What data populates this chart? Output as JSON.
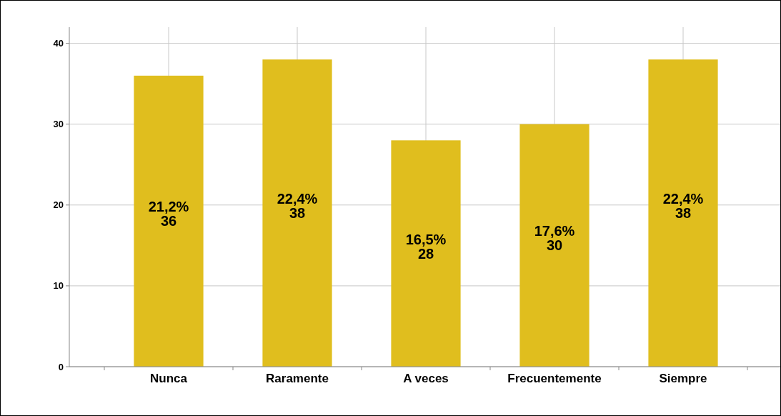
{
  "chart_data": {
    "type": "bar",
    "categories": [
      "Nunca",
      "Raramente",
      "A veces",
      "Frecuentemente",
      "Siempre"
    ],
    "values": [
      36,
      38,
      28,
      30,
      38
    ],
    "value_labels": [
      "21,2%\n36",
      "22,4%\n38",
      "16,5%\n28",
      "17,6%\n30",
      "22,4%\n38"
    ],
    "color": "#e0be1e",
    "ylim": [
      0,
      42
    ],
    "yticks": [
      0,
      10,
      20,
      30,
      40
    ],
    "grid": true
  }
}
